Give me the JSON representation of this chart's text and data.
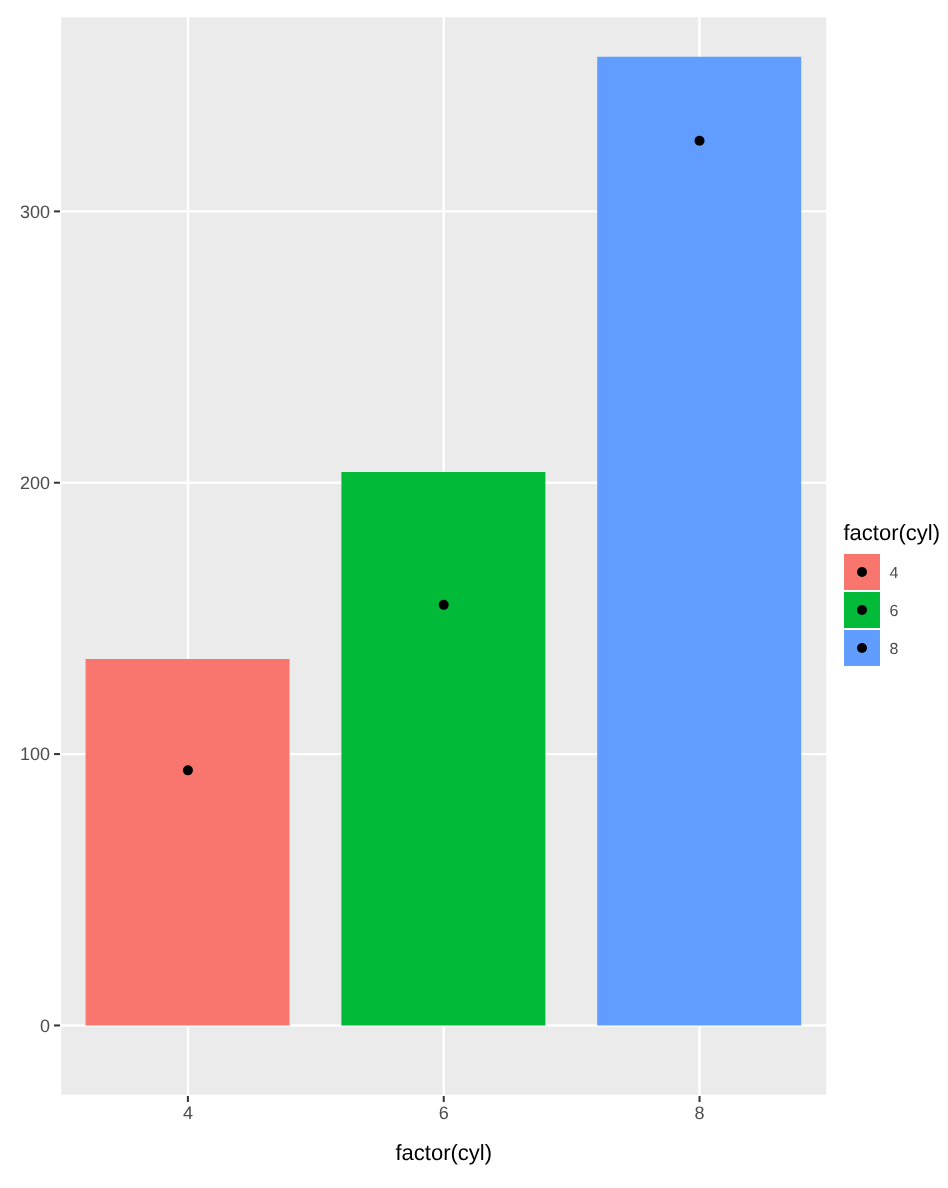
{
  "chart_data": {
    "type": "bar",
    "xlabel": "factor(cyl)",
    "legend_title": "factor(cyl)",
    "categories": [
      "4",
      "6",
      "8"
    ],
    "series": [
      {
        "name": "4",
        "color": "#f8766d",
        "values": [
          135,
          null,
          null
        ]
      },
      {
        "name": "6",
        "color": "#00ba38",
        "values": [
          null,
          204,
          null
        ]
      },
      {
        "name": "8",
        "color": "#619cff",
        "values": [
          null,
          null,
          357
        ]
      },
      {
        "type": "scatter",
        "color": "#000000",
        "x": [
          "4",
          "6",
          "8"
        ],
        "values": [
          94,
          155,
          326
        ]
      }
    ],
    "stacked": true,
    "ylim": [
      -26,
      372
    ],
    "yticks": [
      0,
      100,
      200,
      300
    ],
    "grid": true,
    "legend": "right"
  }
}
